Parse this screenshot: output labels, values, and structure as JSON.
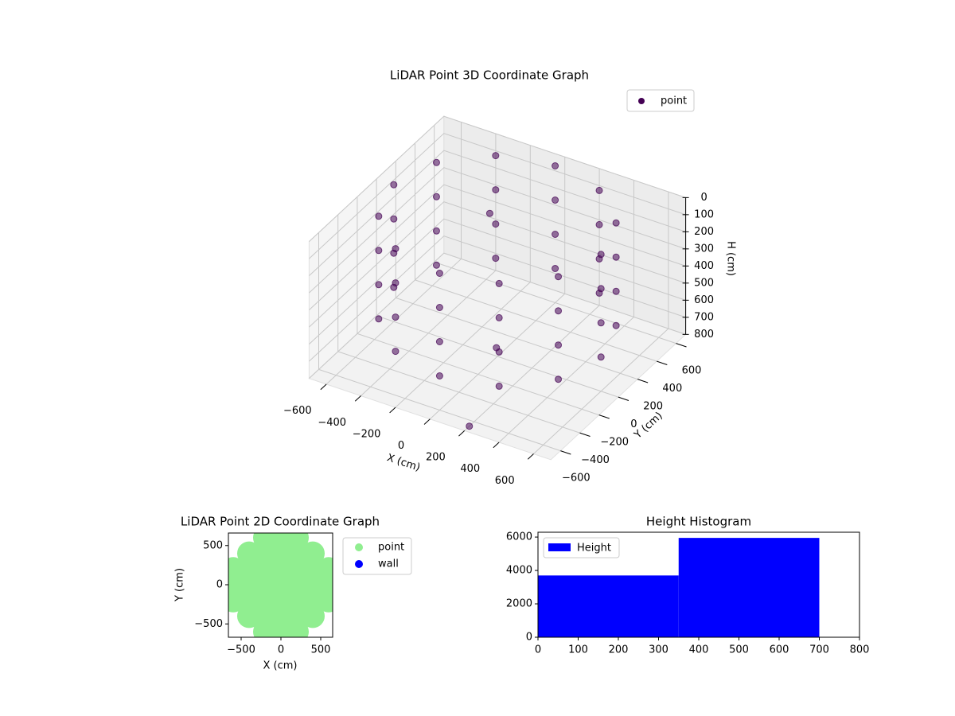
{
  "chart_data": [
    {
      "type": "scatter3d",
      "title": "LiDAR Point 3D Coordinate Graph",
      "xlabel": "X (cm)",
      "ylabel": "Y (cm)",
      "zlabel": "H (cm)",
      "xlim": [
        -700,
        700
      ],
      "ylim": [
        -700,
        700
      ],
      "zlim": [
        0,
        800
      ],
      "zinvert": true,
      "grid": true,
      "xticks": [
        {
          "value": -600,
          "label": "−600"
        },
        {
          "value": -400,
          "label": "−400"
        },
        {
          "value": -200,
          "label": "−200"
        },
        0,
        200,
        400,
        600
      ],
      "yticks": [
        {
          "value": -600,
          "label": "−600"
        },
        {
          "value": -400,
          "label": "−400"
        },
        {
          "value": -200,
          "label": "−200"
        },
        0,
        200,
        400,
        600
      ],
      "zticks": [
        0,
        100,
        200,
        300,
        400,
        500,
        600,
        700,
        800
      ],
      "series": [
        {
          "name": "point",
          "color": "#440154",
          "x": [
            600,
            520,
            300,
            0,
            -300,
            -520,
            -600,
            -520,
            -300,
            0,
            300,
            520,
            600,
            520,
            300,
            0,
            -300,
            -520,
            -600,
            -520,
            -300,
            0,
            300,
            520,
            600,
            520,
            300,
            0,
            -300,
            -520,
            -600,
            -520,
            -300,
            0,
            300,
            520,
            600,
            520,
            300,
            0,
            -300,
            -520,
            -600,
            -520,
            -300,
            0,
            300,
            520,
            -100,
            50,
            200
          ],
          "y": [
            0,
            300,
            520,
            600,
            520,
            300,
            0,
            -300,
            -520,
            -600,
            -520,
            -300,
            0,
            300,
            520,
            600,
            520,
            300,
            0,
            -300,
            -520,
            -600,
            -520,
            -300,
            0,
            300,
            520,
            600,
            520,
            300,
            0,
            -300,
            -520,
            -600,
            -520,
            -300,
            0,
            300,
            520,
            600,
            520,
            300,
            0,
            -300,
            -520,
            -600,
            -520,
            -300,
            100,
            -100,
            -650
          ],
          "h": [
            0,
            0,
            0,
            0,
            0,
            0,
            0,
            0,
            0,
            0,
            0,
            0,
            200,
            200,
            200,
            200,
            200,
            200,
            200,
            200,
            200,
            200,
            200,
            200,
            400,
            400,
            400,
            400,
            400,
            400,
            400,
            400,
            400,
            400,
            400,
            400,
            600,
            600,
            600,
            600,
            600,
            600,
            600,
            600,
            600,
            600,
            600,
            600,
            50,
            680,
            800
          ]
        }
      ],
      "legend": "upper right"
    },
    {
      "type": "scatter",
      "title": "LiDAR Point 2D Coordinate Graph",
      "xlabel": "X (cm)",
      "ylabel": "Y (cm)",
      "xlim": [
        -660,
        650
      ],
      "ylim": [
        -670,
        660
      ],
      "xticks": [
        {
          "value": -500,
          "label": "−500"
        },
        0,
        500
      ],
      "yticks": [
        {
          "value": -500,
          "label": "−500"
        },
        0,
        500
      ],
      "series": [
        {
          "name": "point",
          "color": "#90ee90",
          "x": [
            -600,
            -400,
            -200,
            0,
            200,
            400,
            600,
            -600,
            -400,
            -200,
            0,
            200,
            400,
            600,
            -600,
            -400,
            -200,
            0,
            200,
            400,
            600,
            -400,
            -200,
            0,
            200,
            400,
            -400,
            -200,
            0,
            200,
            400,
            -200,
            0,
            200,
            -200,
            0,
            200
          ],
          "y": [
            0,
            0,
            0,
            0,
            0,
            0,
            0,
            200,
            200,
            200,
            200,
            200,
            200,
            200,
            -200,
            -200,
            -200,
            -200,
            -200,
            -200,
            -200,
            400,
            400,
            400,
            400,
            400,
            -400,
            -400,
            -400,
            -400,
            -400,
            600,
            600,
            600,
            -600,
            -600,
            -600
          ]
        },
        {
          "name": "wall",
          "color": "#0000ff",
          "x": [],
          "y": []
        }
      ],
      "legend": "outside right"
    },
    {
      "type": "histogram",
      "title": "Height Histogram",
      "bins": [
        0,
        350,
        700
      ],
      "counts": [
        3700,
        5950
      ],
      "color": "#0000ff",
      "legend_label": "Height",
      "xlim": [
        0,
        800
      ],
      "ylim": [
        0,
        6290
      ],
      "xticks": [
        0,
        100,
        200,
        300,
        400,
        500,
        600,
        700,
        800
      ],
      "yticks": [
        0,
        2000,
        4000,
        6000
      ],
      "legend": "upper left"
    }
  ]
}
